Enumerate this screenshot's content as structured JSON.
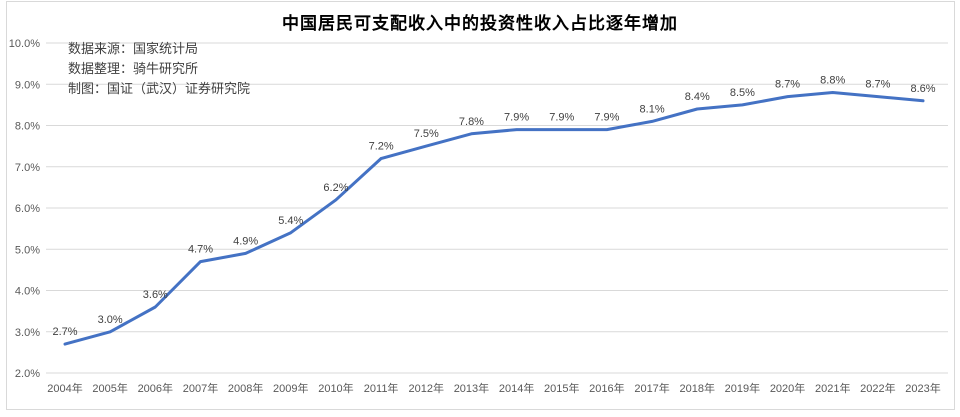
{
  "chart": {
    "annotations": [
      "数据来源：国家统计局",
      "数据整理：骑牛研究所",
      "制图：国证（武汉）证券研究院"
    ]
  },
  "chart_data": {
    "type": "line",
    "title": "中国居民可支配收入中的投资性收入占比逐年增加",
    "categories": [
      "2004年",
      "2005年",
      "2006年",
      "2007年",
      "2008年",
      "2009年",
      "2010年",
      "2011年",
      "2012年",
      "2013年",
      "2014年",
      "2015年",
      "2016年",
      "2017年",
      "2018年",
      "2019年",
      "2020年",
      "2021年",
      "2022年",
      "2023年"
    ],
    "values": [
      2.7,
      3.0,
      3.6,
      4.7,
      4.9,
      5.4,
      6.2,
      7.2,
      7.5,
      7.8,
      7.9,
      7.9,
      7.9,
      8.1,
      8.4,
      8.5,
      8.7,
      8.8,
      8.7,
      8.6
    ],
    "data_labels": [
      "2.7%",
      "3.0%",
      "3.6%",
      "4.7%",
      "4.9%",
      "5.4%",
      "6.2%",
      "7.2%",
      "7.5%",
      "7.8%",
      "7.9%",
      "7.9%",
      "7.9%",
      "8.1%",
      "8.4%",
      "8.5%",
      "8.7%",
      "8.8%",
      "8.7%",
      "8.6%"
    ],
    "y_tick_labels": [
      "10.0%",
      "9.0%",
      "8.0%",
      "7.0%",
      "6.0%",
      "5.0%",
      "4.0%",
      "3.0%",
      "2.0%"
    ],
    "ylim": [
      2.0,
      10.0
    ],
    "xlabel": "",
    "ylabel": "",
    "grid": true,
    "legend": "none",
    "line_color": "#4472C4",
    "gridline_color": "#D9D9D9",
    "axis_label_color": "#595959",
    "data_label_color": "#404040"
  }
}
